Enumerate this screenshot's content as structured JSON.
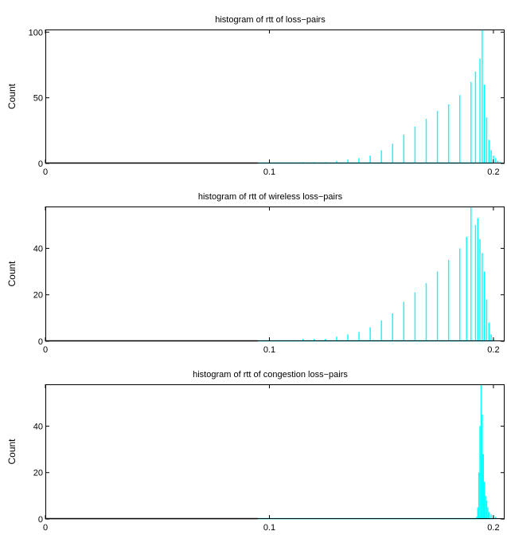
{
  "chart_data": [
    {
      "type": "bar",
      "title": "histogram of rtt of loss−pairs",
      "xlabel": "",
      "ylabel": "Count",
      "xlim": [
        0,
        0.205
      ],
      "ylim": [
        0,
        102
      ],
      "xticks": [
        "0",
        "0.1",
        "0.2"
      ],
      "yticks": [
        "0",
        "50",
        "100"
      ],
      "color": "#00ffff",
      "bin_width": 0.0005,
      "x": [
        0.095,
        0.1,
        0.105,
        0.11,
        0.115,
        0.12,
        0.125,
        0.13,
        0.135,
        0.14,
        0.145,
        0.15,
        0.155,
        0.16,
        0.165,
        0.17,
        0.175,
        0.18,
        0.185,
        0.19,
        0.192,
        0.194,
        0.195,
        0.196,
        0.197,
        0.198,
        0.199,
        0.2,
        0.201,
        0.202,
        0.203,
        0.204
      ],
      "values": [
        0,
        0,
        0,
        0,
        1,
        1,
        1,
        2,
        3,
        4,
        6,
        10,
        15,
        22,
        28,
        34,
        40,
        45,
        52,
        62,
        70,
        80,
        102,
        60,
        35,
        18,
        10,
        6,
        4,
        2,
        1,
        0
      ]
    },
    {
      "type": "bar",
      "title": "histogram of rtt of wireless loss−pairs",
      "xlabel": "",
      "ylabel": "Count",
      "xlim": [
        0,
        0.205
      ],
      "ylim": [
        0,
        58
      ],
      "xticks": [
        "0",
        "0.1",
        "0.2"
      ],
      "yticks": [
        "0",
        "20",
        "40"
      ],
      "color": "#00ffff",
      "bin_width": 0.0005,
      "x": [
        0.095,
        0.1,
        0.105,
        0.11,
        0.115,
        0.12,
        0.125,
        0.13,
        0.135,
        0.14,
        0.145,
        0.15,
        0.155,
        0.16,
        0.165,
        0.17,
        0.175,
        0.18,
        0.185,
        0.188,
        0.19,
        0.192,
        0.193,
        0.194,
        0.195,
        0.196,
        0.197,
        0.198,
        0.199,
        0.2
      ],
      "values": [
        0,
        0,
        0,
        0,
        1,
        1,
        1,
        2,
        3,
        4,
        6,
        9,
        12,
        17,
        21,
        25,
        30,
        35,
        40,
        45,
        58,
        50,
        53,
        44,
        38,
        30,
        18,
        8,
        3,
        1
      ]
    },
    {
      "type": "bar",
      "title": "histogram of rtt of congestion loss−pairs",
      "xlabel": "",
      "ylabel": "Count",
      "xlim": [
        0,
        0.205
      ],
      "ylim": [
        0,
        58
      ],
      "xticks": [
        "0",
        "0.1",
        "0.2"
      ],
      "yticks": [
        "0",
        "20",
        "40"
      ],
      "color": "#00ffff",
      "bin_width": 0.0005,
      "x": [
        0.095,
        0.1,
        0.15,
        0.19,
        0.1925,
        0.193,
        0.1935,
        0.194,
        0.1945,
        0.195,
        0.1955,
        0.196,
        0.1965,
        0.197,
        0.1975,
        0.198,
        0.199,
        0.2,
        0.201,
        0.202
      ],
      "values": [
        0,
        0,
        0,
        0,
        1,
        5,
        20,
        40,
        58,
        45,
        28,
        16,
        10,
        8,
        5,
        3,
        2,
        1,
        1,
        0
      ]
    }
  ]
}
